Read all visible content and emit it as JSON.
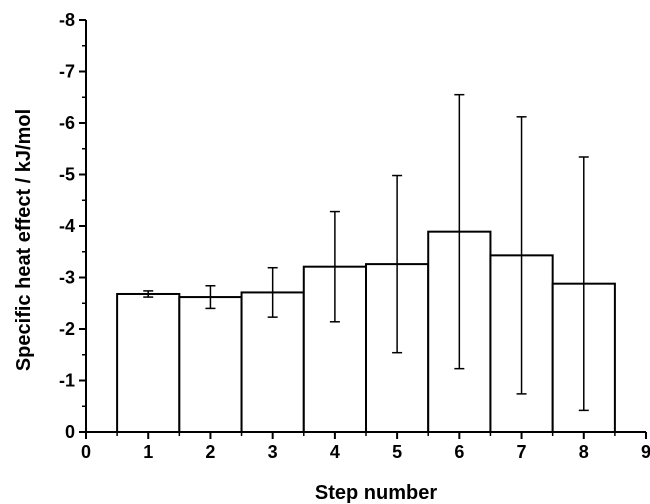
{
  "chart_data": {
    "type": "bar",
    "xlabel": "Step number",
    "ylabel": "Specific heat effect / kJ/mol",
    "xlim": [
      0,
      9
    ],
    "ylim": [
      0,
      -8
    ],
    "y_axis_inverted": true,
    "x_ticks": [
      0,
      1,
      2,
      3,
      4,
      5,
      6,
      7,
      8,
      9
    ],
    "x_tick_labels": [
      "0",
      "1",
      "2",
      "3",
      "4",
      "5",
      "6",
      "7",
      "8",
      "9"
    ],
    "y_ticks": [
      0,
      -1,
      -2,
      -3,
      -4,
      -5,
      -6,
      -7,
      -8
    ],
    "y_tick_labels": [
      "0",
      "-1",
      "-2",
      "-3",
      "-4",
      "-5",
      "-6",
      "-7",
      "-8"
    ],
    "bar_width": 1,
    "bar_fill": "#ffffff",
    "bar_stroke": "#000000",
    "categories": [
      1,
      2,
      3,
      4,
      5,
      6,
      7,
      8
    ],
    "values": [
      -2.68,
      -2.62,
      -2.71,
      -3.21,
      -3.26,
      -3.89,
      -3.43,
      -2.88
    ],
    "error_bars": [
      0.06,
      0.22,
      0.48,
      1.07,
      1.72,
      2.66,
      2.69,
      2.46
    ],
    "grid": false,
    "legend": "none"
  }
}
